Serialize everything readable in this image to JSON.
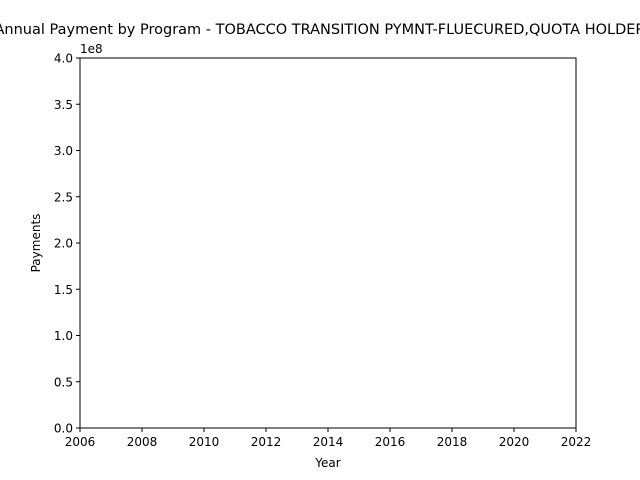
{
  "chart_data": {
    "type": "line",
    "title": "Annual Payment by Program - TOBACCO TRANSITION PYMNT-FLUECURED,QUOTA HOLDER",
    "xlabel": "Year",
    "ylabel": "Payments",
    "offset_text": "1e8",
    "xlim": [
      2006,
      2022
    ],
    "ylim": [
      0,
      400000000
    ],
    "x_ticks": [
      2006,
      2008,
      2010,
      2012,
      2014,
      2016,
      2018,
      2020,
      2022
    ],
    "x_tick_labels": [
      "2006",
      "2008",
      "2010",
      "2012",
      "2014",
      "2016",
      "2018",
      "2020",
      "2022"
    ],
    "y_ticks": [
      0,
      50000000,
      100000000,
      150000000,
      200000000,
      250000000,
      300000000,
      350000000,
      400000000
    ],
    "y_tick_labels": [
      "0.0",
      "0.5",
      "1.0",
      "1.5",
      "2.0",
      "2.5",
      "3.0",
      "3.5",
      "4.0"
    ],
    "series": [],
    "grid": false,
    "colors": {
      "axis": "#000000",
      "background": "#ffffff"
    }
  }
}
